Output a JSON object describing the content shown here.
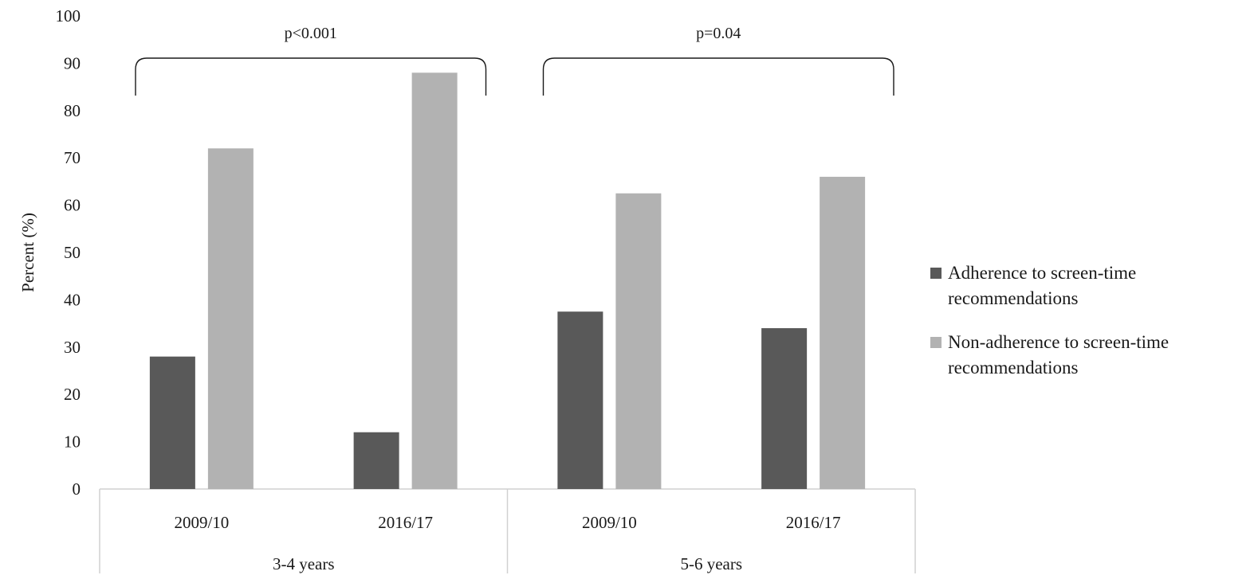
{
  "chart_data": {
    "type": "bar",
    "title": "",
    "xlabel": "",
    "ylabel": "Percent  (%)",
    "ylim": [
      0,
      100
    ],
    "yticks": [
      "0",
      "10",
      "20",
      "30",
      "40",
      "50",
      "60",
      "70",
      "80",
      "90",
      "100"
    ],
    "grid": false,
    "legend_position": "right",
    "groups": [
      {
        "label": "3-4 years",
        "categories": [
          "2009/10",
          "2016/17"
        ],
        "bracket_label": "p<0.001"
      },
      {
        "label": "5-6 years",
        "categories": [
          "2009/10",
          "2016/17"
        ],
        "bracket_label": "p=0.04"
      }
    ],
    "series": [
      {
        "name": "Adherence to screen-time recommendations",
        "legend_lines": [
          "Adherence to screen-time",
          "recommendations"
        ],
        "color": "#595959",
        "values": [
          28,
          12,
          37.5,
          34
        ]
      },
      {
        "name": "Non-adherence to screen-time recommendations",
        "legend_lines": [
          "Non-adherence to screen-time",
          "recommendations"
        ],
        "color": "#b2b2b2",
        "values": [
          72,
          88,
          62.5,
          66
        ]
      }
    ]
  }
}
